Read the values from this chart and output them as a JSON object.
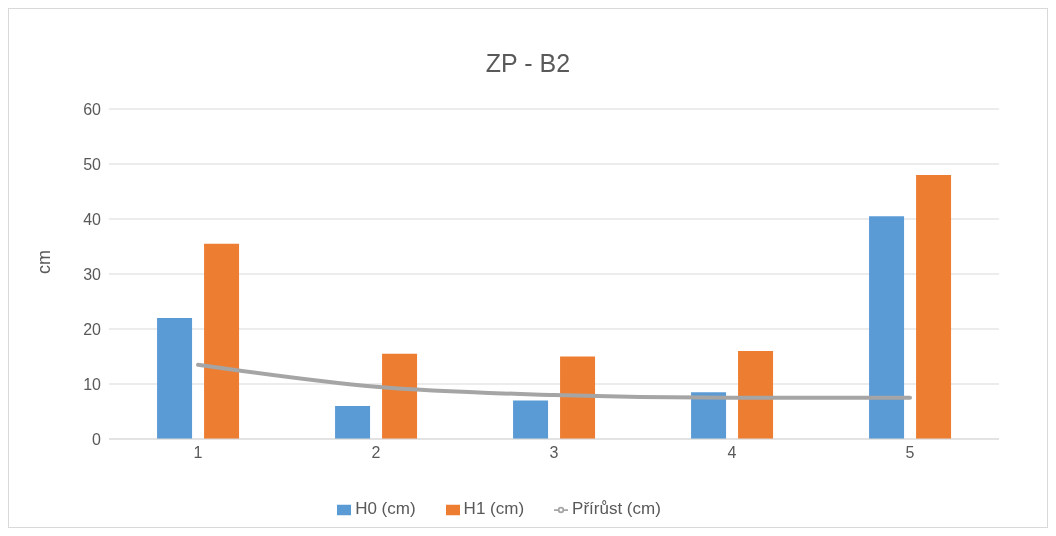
{
  "chart_data": {
    "type": "bar",
    "title": "ZP - B2",
    "ylabel": "cm",
    "categories": [
      "1",
      "2",
      "3",
      "4",
      "5"
    ],
    "series": [
      {
        "name": "H0 (cm)",
        "color": "#5b9bd5",
        "values": [
          22,
          6,
          7,
          8.5,
          40.5
        ]
      },
      {
        "name": "H1 (cm)",
        "color": "#ed7d31",
        "values": [
          35.5,
          15.5,
          15,
          16,
          48
        ]
      },
      {
        "name": "Přírůst (cm)",
        "color": "#a5a5a5",
        "type": "line",
        "values": [
          13.5,
          9.5,
          8,
          7.5,
          7.5
        ]
      }
    ],
    "ylim": [
      0,
      60
    ],
    "yticks": [
      0,
      10,
      20,
      30,
      40,
      50,
      60
    ],
    "grid": "y",
    "legend": "bottom",
    "marker": "none"
  }
}
